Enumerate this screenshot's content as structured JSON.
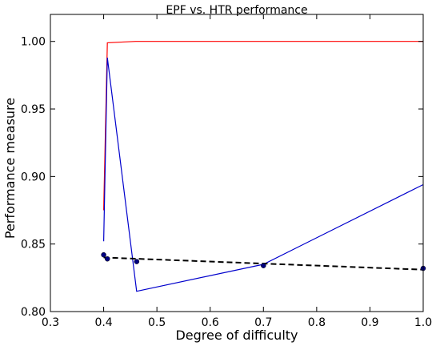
{
  "chart_data": {
    "type": "line",
    "title": "EPF vs. HTR performance",
    "xlabel": "Degree of difficulty",
    "ylabel": "Performance measure",
    "xlim": [
      0.3,
      1.0
    ],
    "ylim": [
      0.8,
      1.02
    ],
    "x_ticks": [
      "0.3",
      "0.4",
      "0.5",
      "0.6",
      "0.7",
      "0.8",
      "0.9",
      "1.0"
    ],
    "y_ticks": [
      "0.80",
      "0.85",
      "0.90",
      "0.95",
      "1.00"
    ],
    "grid": false,
    "series": [
      {
        "color": "#ff0000",
        "style": "solid",
        "x": [
          0.4,
          0.407,
          0.46,
          0.7,
          1.0
        ],
        "y": [
          0.875,
          0.999,
          1.0,
          1.0,
          1.0
        ]
      },
      {
        "color": "#0000cc",
        "style": "solid",
        "x": [
          0.4,
          0.407,
          0.462,
          0.7,
          1.0
        ],
        "y": [
          0.852,
          0.988,
          0.815,
          0.835,
          0.894
        ]
      },
      {
        "color": "#000000",
        "style": "dashed",
        "x": [
          0.4,
          1.0
        ],
        "y": [
          0.84,
          0.831
        ]
      },
      {
        "color": "#000080",
        "style": "markers",
        "x": [
          0.4,
          0.407,
          0.462,
          0.7,
          1.0
        ],
        "y": [
          0.842,
          0.839,
          0.837,
          0.834,
          0.832
        ]
      }
    ]
  }
}
